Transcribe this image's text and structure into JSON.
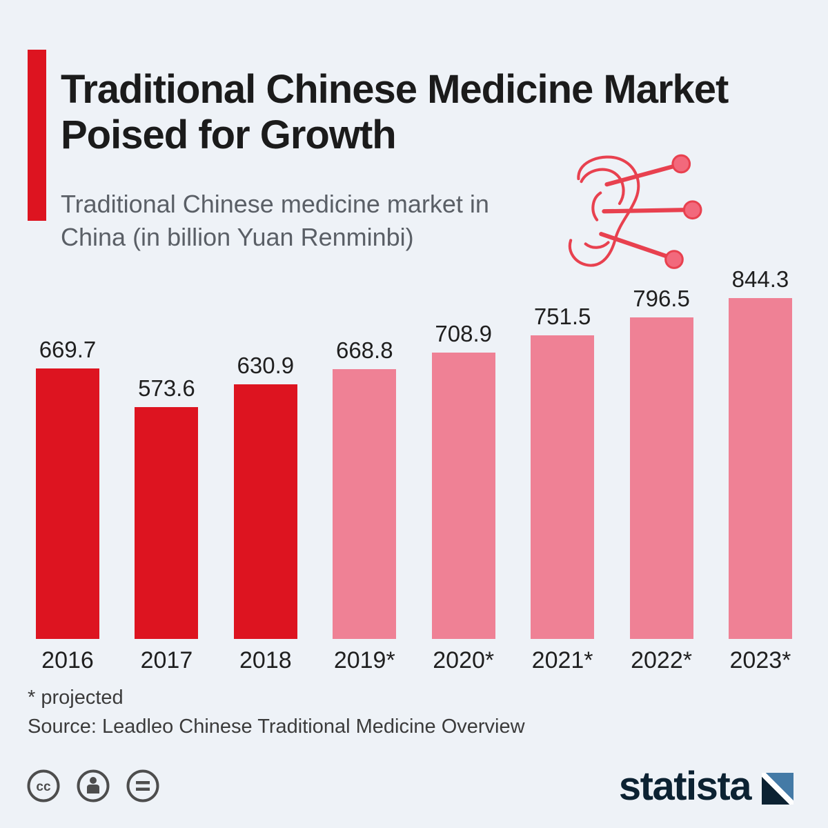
{
  "page": {
    "background": "#eef2f7"
  },
  "header": {
    "title": "Traditional Chinese Medicine Market Poised for Growth",
    "subtitle": "Traditional Chinese medicine market in China (in billion Yuan Renminbi)",
    "accent_color": "#dd1420"
  },
  "chart_data": {
    "type": "bar",
    "title": "Traditional Chinese medicine market in China",
    "ylabel": "billion Yuan Renminbi",
    "categories": [
      "2016",
      "2017",
      "2018",
      "2019*",
      "2020*",
      "2021*",
      "2022*",
      "2023*"
    ],
    "values": [
      669.7,
      573.6,
      630.9,
      668.8,
      708.9,
      751.5,
      796.5,
      844.3
    ],
    "ylim": [
      0,
      900
    ],
    "grid": false,
    "legend": "none",
    "projected_from_index": 3,
    "colors": {
      "actual": "#dd1420",
      "projected": "#ef8195"
    }
  },
  "footer": {
    "footnote": "* projected",
    "source": "Source: Leadleo Chinese Traditional Medicine Overview"
  },
  "branding": {
    "logo_text": "statista",
    "logo_color": "#0c2232"
  },
  "icons": {
    "ear": "acupuncture-ear-icon",
    "license": [
      "cc-icon",
      "attribution-person-icon",
      "equals-icon"
    ],
    "logo": "statista-flag-icon"
  }
}
